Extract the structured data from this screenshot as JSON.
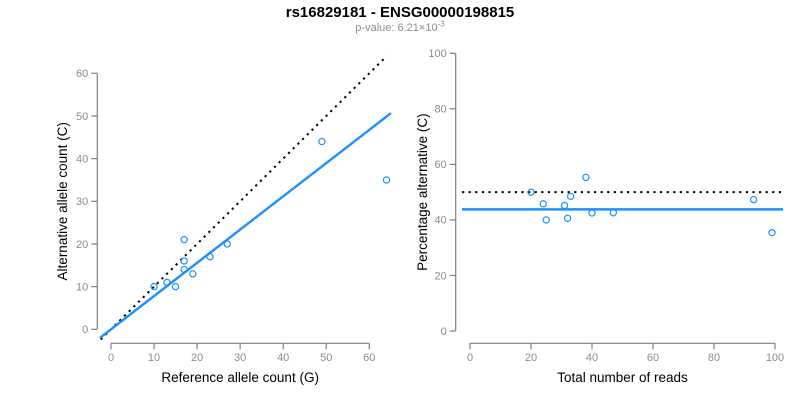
{
  "header": {
    "title": "rs16829181 - ENSG00000198815",
    "pvalue_prefix": "p-value: 6.21×10",
    "pvalue_exponent": "-3"
  },
  "colors": {
    "accent_blue": "#1E8FFF",
    "axis_line_gray": "#808080",
    "tick_label_gray": "#8C8C8C",
    "dotted_black": "#000000",
    "text_black": "#000000"
  },
  "chart_data": [
    {
      "type": "scatter",
      "panel": "allele-counts",
      "title": "",
      "xlabel": "Reference allele count (G)",
      "ylabel": "Alternative allele count (C)",
      "xticks": [
        0,
        10,
        20,
        30,
        40,
        50,
        60
      ],
      "yticks": [
        0,
        10,
        20,
        30,
        40,
        50,
        60
      ],
      "xlim": [
        0,
        64
      ],
      "ylim": [
        0,
        60
      ],
      "grid": false,
      "legend": null,
      "points": [
        [
          10,
          10
        ],
        [
          13,
          11
        ],
        [
          15,
          10
        ],
        [
          17,
          14
        ],
        [
          17,
          16
        ],
        [
          17,
          21
        ],
        [
          19,
          13
        ],
        [
          23,
          17
        ],
        [
          27,
          20
        ],
        [
          49,
          44
        ],
        [
          64,
          35
        ]
      ],
      "lines": [
        {
          "name": "identity-line",
          "type": "abline",
          "slope": 1,
          "intercept": 0,
          "style": "dotted",
          "color": "#000000"
        },
        {
          "name": "fit-line",
          "type": "abline",
          "slope": 0.779,
          "intercept": 0,
          "style": "solid",
          "color": "#1E8FFF"
        }
      ]
    },
    {
      "type": "scatter",
      "panel": "percentage-alternative",
      "title": "",
      "xlabel": "Total number of reads",
      "ylabel": "Percentage alternative (C)",
      "xticks": [
        0,
        20,
        40,
        60,
        80,
        100
      ],
      "yticks": [
        0,
        20,
        40,
        60,
        80,
        100
      ],
      "xlim": [
        0,
        100
      ],
      "ylim": [
        0,
        100
      ],
      "grid": false,
      "legend": null,
      "points": [
        [
          20,
          50.0
        ],
        [
          24,
          45.8
        ],
        [
          25,
          40.0
        ],
        [
          31,
          45.2
        ],
        [
          32,
          40.6
        ],
        [
          33,
          48.5
        ],
        [
          38,
          55.3
        ],
        [
          40,
          42.5
        ],
        [
          47,
          42.6
        ],
        [
          93,
          47.3
        ],
        [
          99,
          35.4
        ]
      ],
      "lines": [
        {
          "name": "expected-50pct-line",
          "type": "hline",
          "y": 50,
          "style": "dotted",
          "color": "#000000"
        },
        {
          "name": "mean-percentage-line",
          "type": "hline",
          "y": 43.8,
          "style": "solid",
          "color": "#1E8FFF"
        }
      ]
    }
  ]
}
